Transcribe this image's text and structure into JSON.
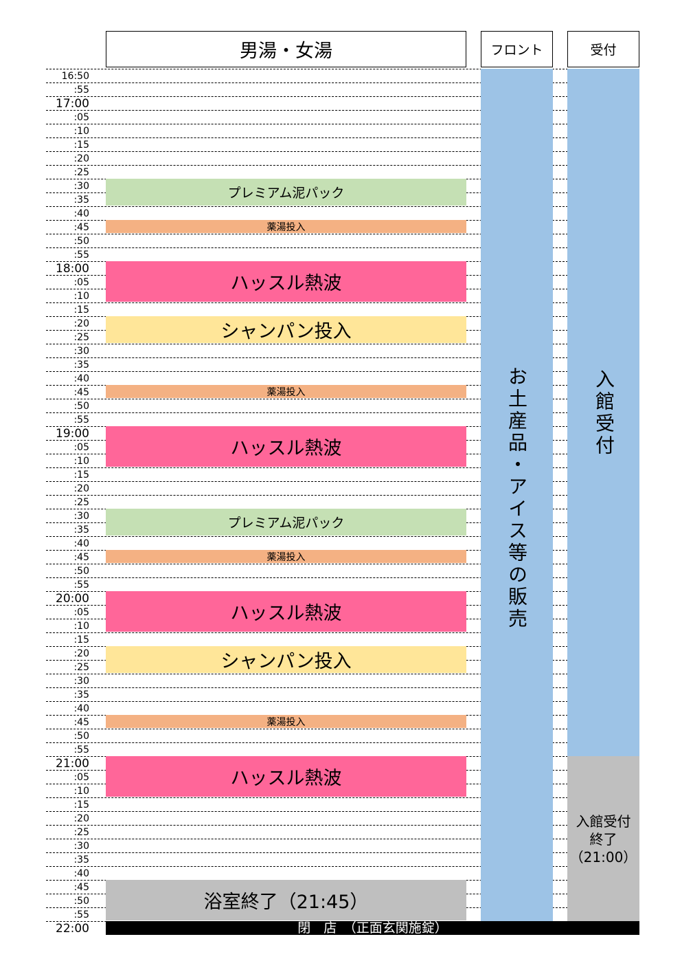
{
  "headers": {
    "main": "男湯・女湯",
    "front": "フロント",
    "reception": "受付"
  },
  "time_labels": [
    "16:50",
    ":55",
    "17:00",
    ":05",
    ":10",
    ":15",
    ":20",
    ":25",
    ":30",
    ":35",
    ":40",
    ":45",
    ":50",
    ":55",
    "18:00",
    ":05",
    ":10",
    ":15",
    ":20",
    ":25",
    ":30",
    ":35",
    ":40",
    ":45",
    ":50",
    ":55",
    "19:00",
    ":05",
    ":10",
    ":15",
    ":20",
    ":25",
    ":30",
    ":35",
    ":40",
    ":45",
    ":50",
    ":55",
    "20:00",
    ":05",
    ":10",
    ":15",
    ":20",
    ":25",
    ":30",
    ":35",
    ":40",
    ":45",
    ":50",
    ":55",
    "21:00",
    ":05",
    ":10",
    ":15",
    ":20",
    ":25",
    ":30",
    ":35",
    ":40",
    ":45",
    ":50",
    ":55",
    "22:00"
  ],
  "events": [
    {
      "label": "プレミアム泥パック",
      "start": "17:30",
      "end": "17:40",
      "color": "#c5e0b4"
    },
    {
      "label": "薬湯投入",
      "start": "17:45",
      "end": "17:50",
      "color": "#f4b183"
    },
    {
      "label": "ハッスル熱波",
      "start": "18:00",
      "end": "18:15",
      "color": "#ff6699"
    },
    {
      "label": "シャンパン投入",
      "start": "18:20",
      "end": "18:30",
      "color": "#ffe699"
    },
    {
      "label": "薬湯投入",
      "start": "18:45",
      "end": "18:50",
      "color": "#f4b183"
    },
    {
      "label": "ハッスル熱波",
      "start": "19:00",
      "end": "19:15",
      "color": "#ff6699"
    },
    {
      "label": "プレミアム泥パック",
      "start": "19:30",
      "end": "19:40",
      "color": "#c5e0b4"
    },
    {
      "label": "薬湯投入",
      "start": "19:45",
      "end": "19:50",
      "color": "#f4b183"
    },
    {
      "label": "ハッスル熱波",
      "start": "20:00",
      "end": "20:15",
      "color": "#ff6699"
    },
    {
      "label": "シャンパン投入",
      "start": "20:20",
      "end": "20:30",
      "color": "#ffe699"
    },
    {
      "label": "薬湯投入",
      "start": "20:45",
      "end": "20:50",
      "color": "#f4b183"
    },
    {
      "label": "ハッスル熱波",
      "start": "21:00",
      "end": "21:15",
      "color": "#ff6699"
    },
    {
      "label": "浴室終了（21:45）",
      "start": "21:45",
      "end": "22:00",
      "color": "#bfbfbf"
    }
  ],
  "front_column": {
    "text": "お土産品・アイス等の販売",
    "color": "#9dc3e6"
  },
  "reception_column": {
    "text": "入館受付",
    "color": "#9dc3e6",
    "end_text": "入館受付\n終了\n（21:00）",
    "end_color": "#bfbfbf"
  },
  "closing": "閉　店　（正面玄関施錠）"
}
